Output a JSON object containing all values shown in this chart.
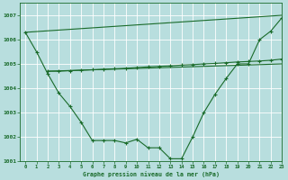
{
  "bg_color": "#b8dede",
  "grid_color": "#ffffff",
  "line_color": "#1a6b2a",
  "title": "Graphe pression niveau de la mer (hPa)",
  "xlim": [
    -0.5,
    23
  ],
  "ylim": [
    1001,
    1007.5
  ],
  "xticks": [
    0,
    1,
    2,
    3,
    4,
    5,
    6,
    7,
    8,
    9,
    10,
    11,
    12,
    13,
    14,
    15,
    16,
    17,
    18,
    19,
    20,
    21,
    22,
    23
  ],
  "yticks": [
    1001,
    1002,
    1003,
    1004,
    1005,
    1006,
    1007
  ],
  "series_main": {
    "x": [
      0,
      1,
      2,
      3,
      4,
      5,
      6,
      7,
      8,
      9,
      10,
      11,
      12,
      13,
      14,
      15,
      16,
      17,
      18,
      19,
      20,
      21,
      22,
      23
    ],
    "y": [
      1006.3,
      1005.5,
      1004.6,
      1003.8,
      1003.25,
      1002.6,
      1001.85,
      1001.85,
      1001.85,
      1001.75,
      1001.9,
      1001.55,
      1001.55,
      1001.1,
      1001.1,
      1002.0,
      1003.0,
      1003.75,
      1004.4,
      1005.0,
      1005.0,
      1006.0,
      1006.35,
      1006.9
    ]
  },
  "series_flat": {
    "x": [
      2,
      3,
      4,
      5,
      6,
      7,
      8,
      9,
      10,
      11,
      12,
      13,
      14,
      15,
      16,
      17,
      18,
      19,
      20,
      21,
      22,
      23
    ],
    "y": [
      1004.7,
      1004.7,
      1004.72,
      1004.74,
      1004.76,
      1004.78,
      1004.8,
      1004.82,
      1004.85,
      1004.88,
      1004.9,
      1004.92,
      1004.95,
      1004.97,
      1005.0,
      1005.02,
      1005.05,
      1005.08,
      1005.1,
      1005.12,
      1005.15,
      1005.2
    ]
  },
  "series_diag_low": {
    "x": [
      2,
      23
    ],
    "y": [
      1004.7,
      1005.0
    ]
  },
  "series_diag_top": {
    "x": [
      0,
      23
    ],
    "y": [
      1006.3,
      1007.0
    ]
  }
}
